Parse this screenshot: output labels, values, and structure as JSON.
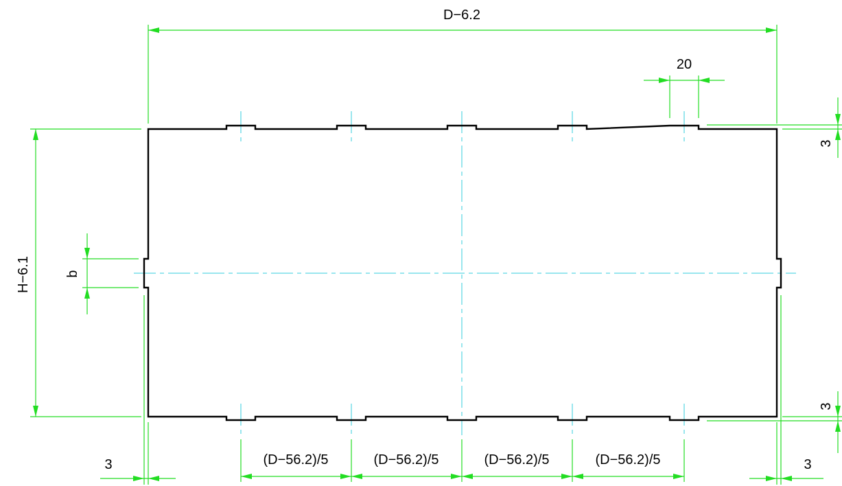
{
  "dimensions": {
    "overall_width": "D−6.2",
    "overall_height": "H−6.1",
    "tab_width": "20",
    "tab_height_top": "3",
    "tab_height_bottom": "3",
    "side_tab": "b",
    "left_offset": "3",
    "right_offset": "3",
    "spacing_1": "(D−56.2)/5",
    "spacing_2": "(D−56.2)/5",
    "spacing_3": "(D−56.2)/5",
    "spacing_4": "(D−56.2)/5"
  },
  "colors": {
    "outline": "#000000",
    "dimension_lines": "#22dd22",
    "center_lines": "#33ccdd"
  }
}
